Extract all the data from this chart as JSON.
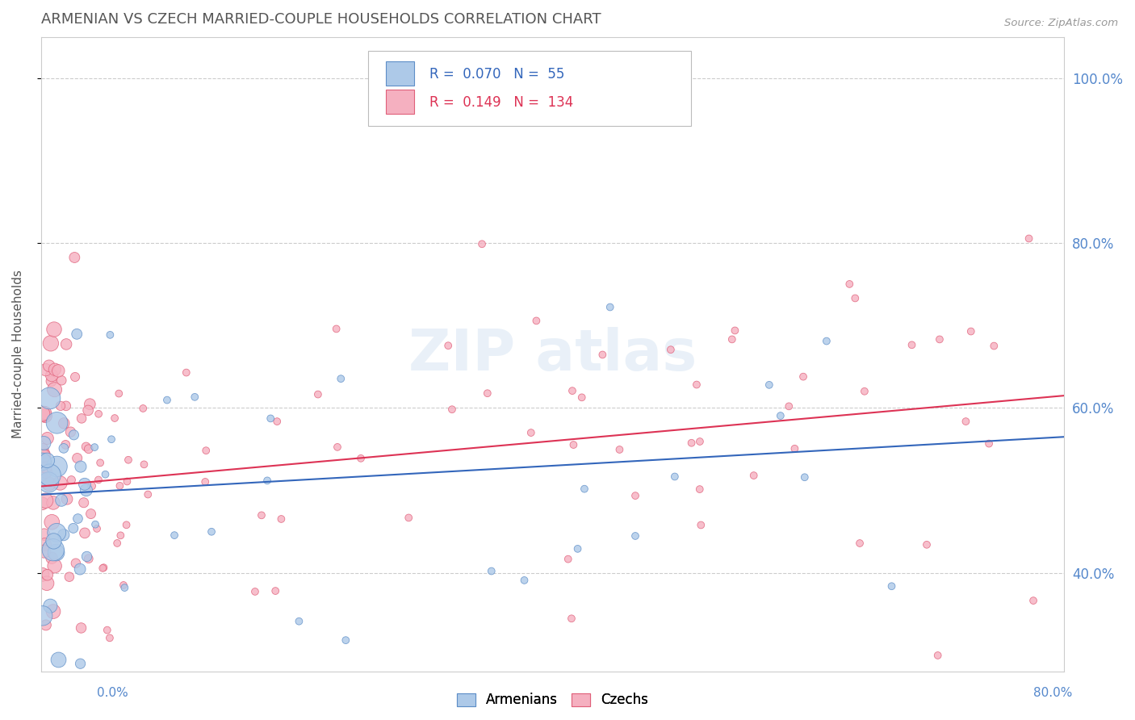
{
  "title": "ARMENIAN VS CZECH MARRIED-COUPLE HOUSEHOLDS CORRELATION CHART",
  "source": "Source: ZipAtlas.com",
  "ylabel": "Married-couple Households",
  "xlim": [
    0.0,
    0.8
  ],
  "ylim": [
    0.28,
    1.05
  ],
  "ytick_vals": [
    0.4,
    0.6,
    0.8,
    1.0
  ],
  "ytick_labels": [
    "40.0%",
    "60.0%",
    "80.0%",
    "100.0%"
  ],
  "armenian_color": "#adc9e8",
  "armenian_edge": "#5e8ec7",
  "czech_color": "#f5b0c0",
  "czech_edge": "#e0607a",
  "armenian_line_color": "#3366bb",
  "czech_line_color": "#dd3355",
  "legend_R_armenian": "0.070",
  "legend_N_armenian": "55",
  "legend_R_czech": "0.149",
  "legend_N_czech": "134",
  "background_color": "#ffffff",
  "grid_color": "#cccccc",
  "title_color": "#555555",
  "source_color": "#999999",
  "axis_label_color": "#5588cc",
  "arm_line_start_y": 0.495,
  "arm_line_end_y": 0.565,
  "cze_line_start_y": 0.505,
  "cze_line_end_y": 0.615
}
